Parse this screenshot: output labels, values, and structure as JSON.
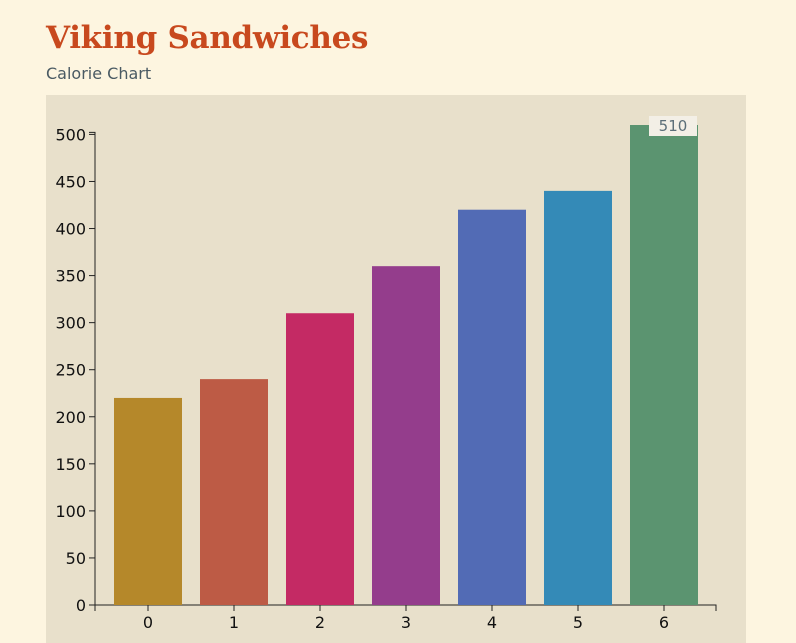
{
  "header": {
    "title": "Viking Sandwiches",
    "subtitle": "Calorie Chart"
  },
  "chart_data": {
    "type": "bar",
    "title": "Viking Sandwiches",
    "subtitle": "Calorie Chart",
    "xlabel": "",
    "ylabel": "",
    "categories": [
      "0",
      "1",
      "2",
      "3",
      "4",
      "5",
      "6"
    ],
    "values": [
      220,
      240,
      310,
      360,
      420,
      440,
      510
    ],
    "colors": [
      "#b5882a",
      "#bd5b45",
      "#c42a64",
      "#943d8c",
      "#526bb5",
      "#348ab7",
      "#5b9470"
    ],
    "ylim": [
      0,
      510
    ],
    "yticks": [
      0,
      50,
      100,
      150,
      200,
      250,
      300,
      350,
      400,
      450,
      500
    ],
    "grid": false,
    "highlighted_value_label": "510"
  },
  "colors": {
    "background": "#fdf5e0",
    "panel": "#e8e0cb",
    "title": "#c8491e",
    "subtitle": "#4a5a63"
  }
}
